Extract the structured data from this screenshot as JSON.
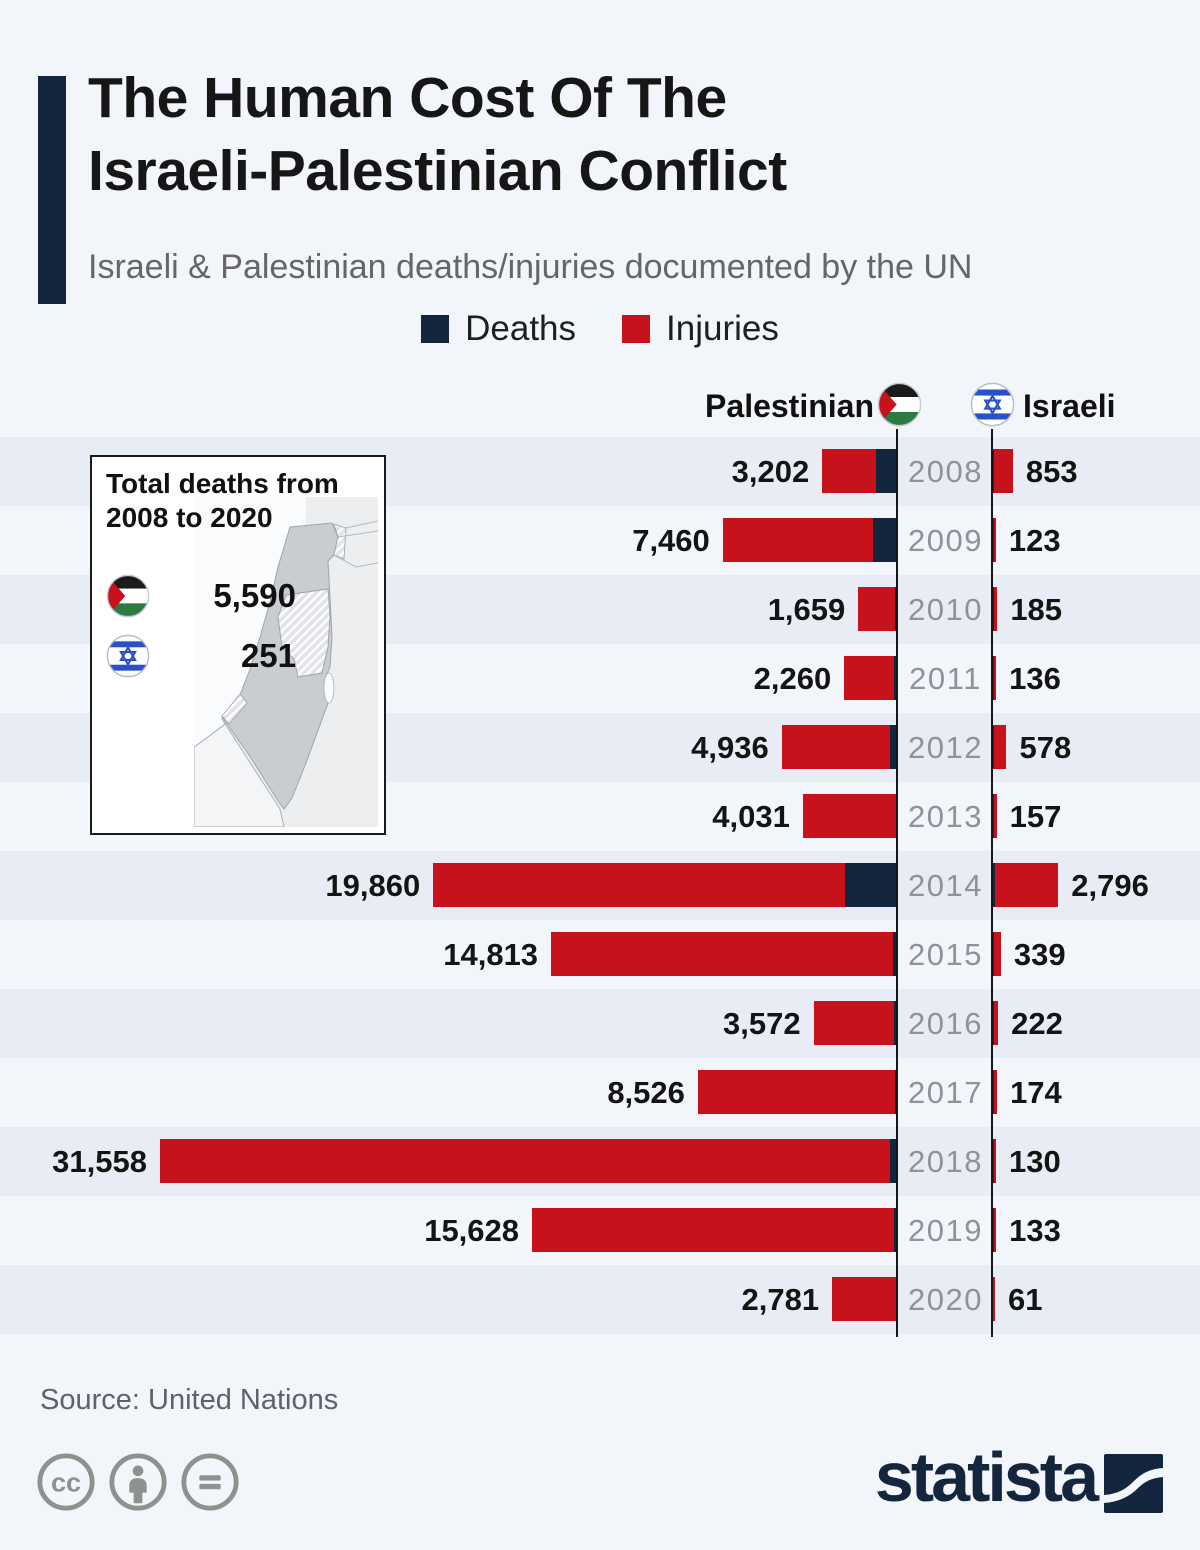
{
  "page": {
    "background": "#F2F5F9",
    "row_band_color": "#E8EDF5"
  },
  "header": {
    "title_line1": "The Human Cost Of The",
    "title_line2": "Israeli-Palestinian Conflict",
    "subtitle": "Israeli & Palestinian deaths/injuries documented by the UN",
    "accent_color": "#14263E"
  },
  "legend": {
    "items": [
      {
        "label": "Deaths",
        "color": "#14263E"
      },
      {
        "label": "Injuries",
        "color": "#C7121B"
      }
    ]
  },
  "columns": {
    "left_label": "Palestinian",
    "left_flag": "palestinian-flag",
    "right_label": "Israeli",
    "right_flag": "israeli-flag"
  },
  "inset": {
    "title_line1": "Total deaths from",
    "title_line2": "2008 to 2020",
    "rows": [
      {
        "flag": "palestinian-flag",
        "value": "5,590"
      },
      {
        "flag": "israeli-flag",
        "value": "251"
      }
    ],
    "map": "israel-palestine-map"
  },
  "chart_data": {
    "type": "bar",
    "orientation": "horizontal-bidirectional",
    "title": "The Human Cost Of The Israeli-Palestinian Conflict",
    "subtitle": "Israeli & Palestinian deaths/injuries documented by the UN",
    "legend_position": "top-center",
    "row_banding": true,
    "categories": [
      "2008",
      "2009",
      "2010",
      "2011",
      "2012",
      "2013",
      "2014",
      "2015",
      "2016",
      "2017",
      "2018",
      "2019",
      "2020"
    ],
    "series": [
      {
        "name": "Palestinian injuries",
        "side": "left",
        "color": "#C7121B",
        "values": [
          3202,
          7460,
          1659,
          2260,
          4936,
          4031,
          19860,
          14813,
          3572,
          8526,
          31558,
          15628,
          2781
        ],
        "labels": [
          "3,202",
          "7,460",
          "1,659",
          "2,260",
          "4,936",
          "4,031",
          "19,860",
          "14,813",
          "3,572",
          "8,526",
          "31,558",
          "15,628",
          "2,781"
        ]
      },
      {
        "name": "Israeli injuries",
        "side": "right",
        "color": "#C7121B",
        "values": [
          853,
          123,
          185,
          136,
          578,
          157,
          2796,
          339,
          222,
          174,
          130,
          133,
          61
        ],
        "labels": [
          "853",
          "123",
          "185",
          "136",
          "578",
          "157",
          "2,796",
          "339",
          "222",
          "174",
          "130",
          "133",
          "61"
        ]
      },
      {
        "name": "Palestinian deaths (unlabeled navy segment, estimated from bar pixels)",
        "side": "left",
        "color": "#14263E",
        "values": [
          890,
          1040,
          87,
          118,
          300,
          39,
          2240,
          174,
          109,
          78,
          299,
          135,
          30
        ]
      },
      {
        "name": "Israeli deaths (unlabeled navy segment, estimated from bar pixels)",
        "side": "right",
        "color": "#14263E",
        "values": [
          31,
          9,
          8,
          11,
          10,
          6,
          87,
          22,
          17,
          15,
          14,
          10,
          3
        ]
      }
    ],
    "totals": {
      "palestinian_deaths_2008_2020": "5,590",
      "israeli_deaths_2008_2020": "251"
    }
  },
  "footer": {
    "source": "Source: United Nations",
    "license_icons": [
      "cc-icon",
      "attribution-icon",
      "equals-icon"
    ],
    "brand_wordmark": "statista",
    "brand_color": "#14263E"
  }
}
